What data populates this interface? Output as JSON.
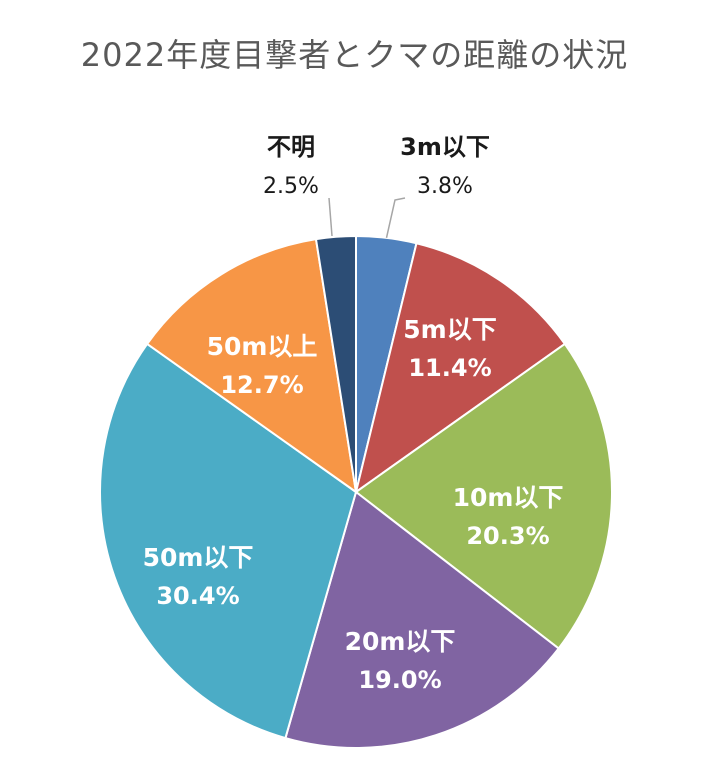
{
  "chart_data": {
    "type": "pie",
    "title": "2022年度目撃者とクマの距離の状況",
    "start_angle_deg": 0,
    "direction": "clockwise",
    "slices": [
      {
        "label": "3m以下",
        "value": 3.8,
        "display": "3.8%",
        "color": "#4F81BD",
        "label_outside": true
      },
      {
        "label": "5m以下",
        "value": 11.4,
        "display": "11.4%",
        "color": "#C0504D",
        "label_outside": false
      },
      {
        "label": "10m以下",
        "value": 20.3,
        "display": "20.3%",
        "color": "#9BBB59",
        "label_outside": false
      },
      {
        "label": "20m以下",
        "value": 19.0,
        "display": "19.0%",
        "color": "#8064A2",
        "label_outside": false
      },
      {
        "label": "50m以下",
        "value": 30.4,
        "display": "30.4%",
        "color": "#4BACC6",
        "label_outside": false
      },
      {
        "label": "50m以上",
        "value": 12.7,
        "display": "12.7%",
        "color": "#F79646",
        "label_outside": false
      },
      {
        "label": "不明",
        "value": 2.5,
        "display": "2.5%",
        "color": "#2C4D75",
        "label_outside": true
      }
    ]
  }
}
